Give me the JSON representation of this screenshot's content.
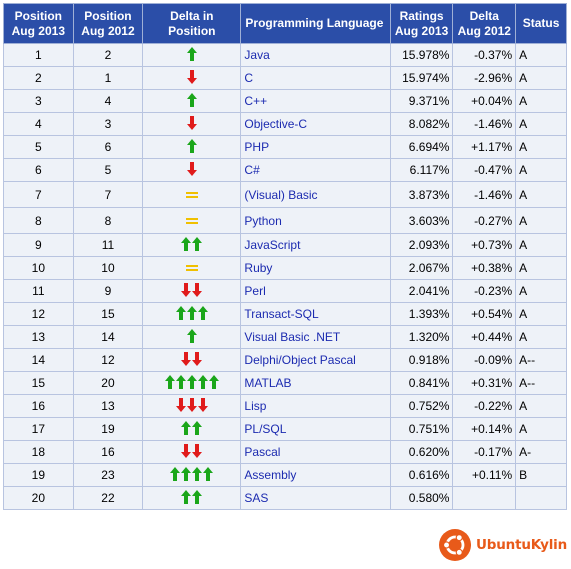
{
  "headers": {
    "pos_2013": "Position\nAug 2013",
    "pos_2012": "Position\nAug 2012",
    "delta_position": "Delta in Position",
    "language": "Programming Language",
    "ratings": "Ratings\nAug 2013",
    "delta_2012": "Delta\nAug 2012",
    "status": "Status"
  },
  "colors": {
    "header_bg": "#2b4ea8",
    "up_arrow": "#1aa61a",
    "down_arrow": "#e01b1b",
    "equal_mark": "#f0c000",
    "link": "#1c2bb0",
    "row_bg": "#eef2f8",
    "watermark": "#e85a1a"
  },
  "rows": [
    {
      "pos_2013": "1",
      "pos_2012": "2",
      "delta_dir": "up",
      "delta_count": 1,
      "language": "Java",
      "rating": "15.978%",
      "delta": "-0.37%",
      "status": "A"
    },
    {
      "pos_2013": "2",
      "pos_2012": "1",
      "delta_dir": "down",
      "delta_count": 1,
      "language": "C",
      "rating": "15.974%",
      "delta": "-2.96%",
      "status": "A"
    },
    {
      "pos_2013": "3",
      "pos_2012": "4",
      "delta_dir": "up",
      "delta_count": 1,
      "language": "C++",
      "rating": "9.371%",
      "delta": "+0.04%",
      "status": "A"
    },
    {
      "pos_2013": "4",
      "pos_2012": "3",
      "delta_dir": "down",
      "delta_count": 1,
      "language": "Objective-C",
      "rating": "8.082%",
      "delta": "-1.46%",
      "status": "A"
    },
    {
      "pos_2013": "5",
      "pos_2012": "6",
      "delta_dir": "up",
      "delta_count": 1,
      "language": "PHP",
      "rating": "6.694%",
      "delta": "+1.17%",
      "status": "A"
    },
    {
      "pos_2013": "6",
      "pos_2012": "5",
      "delta_dir": "down",
      "delta_count": 1,
      "language": "C#",
      "rating": "6.117%",
      "delta": "-0.47%",
      "status": "A"
    },
    {
      "pos_2013": "7",
      "pos_2012": "7",
      "delta_dir": "equal",
      "delta_count": 1,
      "language": "(Visual) Basic",
      "rating": "3.873%",
      "delta": "-1.46%",
      "status": "A"
    },
    {
      "pos_2013": "8",
      "pos_2012": "8",
      "delta_dir": "equal",
      "delta_count": 1,
      "language": "Python",
      "rating": "3.603%",
      "delta": "-0.27%",
      "status": "A"
    },
    {
      "pos_2013": "9",
      "pos_2012": "11",
      "delta_dir": "up",
      "delta_count": 2,
      "language": "JavaScript",
      "rating": "2.093%",
      "delta": "+0.73%",
      "status": "A"
    },
    {
      "pos_2013": "10",
      "pos_2012": "10",
      "delta_dir": "equal",
      "delta_count": 1,
      "language": "Ruby",
      "rating": "2.067%",
      "delta": "+0.38%",
      "status": "A"
    },
    {
      "pos_2013": "11",
      "pos_2012": "9",
      "delta_dir": "down",
      "delta_count": 2,
      "language": "Perl",
      "rating": "2.041%",
      "delta": "-0.23%",
      "status": "A"
    },
    {
      "pos_2013": "12",
      "pos_2012": "15",
      "delta_dir": "up",
      "delta_count": 3,
      "language": "Transact-SQL",
      "rating": "1.393%",
      "delta": "+0.54%",
      "status": "A"
    },
    {
      "pos_2013": "13",
      "pos_2012": "14",
      "delta_dir": "up",
      "delta_count": 1,
      "language": "Visual Basic .NET",
      "rating": "1.320%",
      "delta": "+0.44%",
      "status": "A"
    },
    {
      "pos_2013": "14",
      "pos_2012": "12",
      "delta_dir": "down",
      "delta_count": 2,
      "language": "Delphi/Object Pascal",
      "rating": "0.918%",
      "delta": "-0.09%",
      "status": "A--"
    },
    {
      "pos_2013": "15",
      "pos_2012": "20",
      "delta_dir": "up",
      "delta_count": 5,
      "language": "MATLAB",
      "rating": "0.841%",
      "delta": "+0.31%",
      "status": "A--"
    },
    {
      "pos_2013": "16",
      "pos_2012": "13",
      "delta_dir": "down",
      "delta_count": 3,
      "language": "Lisp",
      "rating": "0.752%",
      "delta": "-0.22%",
      "status": "A"
    },
    {
      "pos_2013": "17",
      "pos_2012": "19",
      "delta_dir": "up",
      "delta_count": 2,
      "language": "PL/SQL",
      "rating": "0.751%",
      "delta": "+0.14%",
      "status": "A"
    },
    {
      "pos_2013": "18",
      "pos_2012": "16",
      "delta_dir": "down",
      "delta_count": 2,
      "language": "Pascal",
      "rating": "0.620%",
      "delta": "-0.17%",
      "status": "A-"
    },
    {
      "pos_2013": "19",
      "pos_2012": "23",
      "delta_dir": "up",
      "delta_count": 4,
      "language": "Assembly",
      "rating": "0.616%",
      "delta": "+0.11%",
      "status": "B"
    },
    {
      "pos_2013": "20",
      "pos_2012": "22",
      "delta_dir": "up",
      "delta_count": 2,
      "language": "SAS",
      "rating": "0.580%",
      "delta": "",
      "status": ""
    }
  ],
  "watermark": {
    "text": "UbuntuKylin",
    "icon": "ubuntu-logo-icon"
  }
}
